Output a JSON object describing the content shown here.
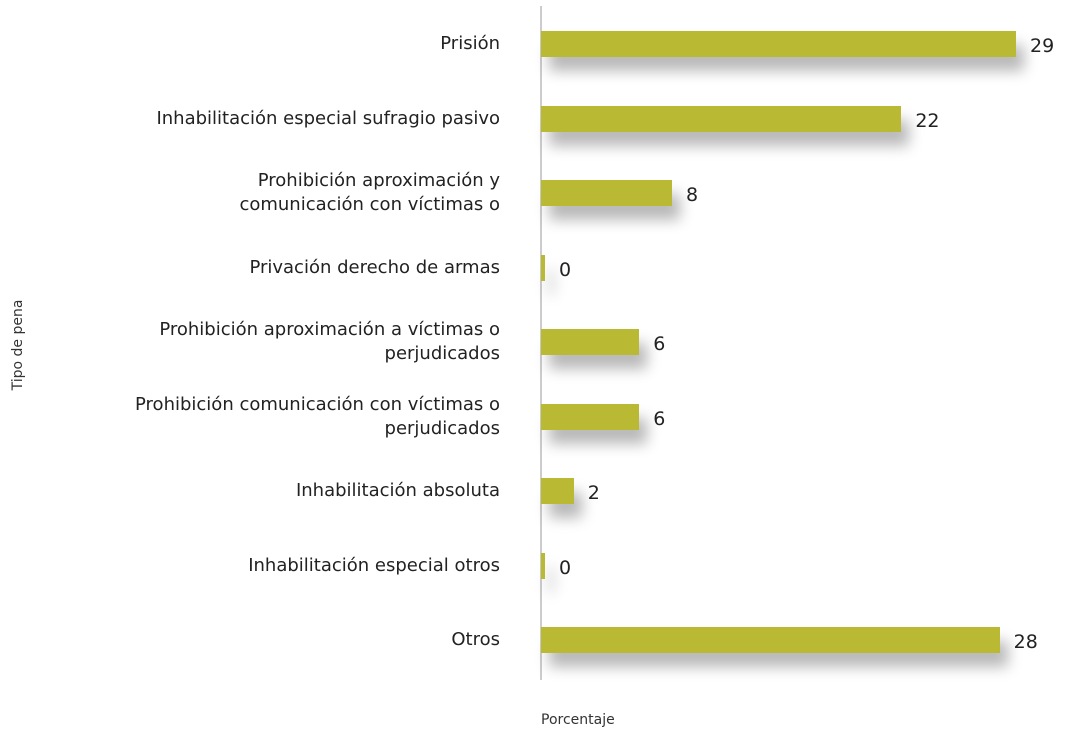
{
  "chart_data": {
    "type": "barh",
    "categories": [
      "Prisión",
      "Inhabilitación especial sufragio pasivo",
      "Prohibición aproximación y\ncomunicación con víctimas o",
      "Privación derecho de armas",
      "Prohibición aproximación a víctimas o\nperjudicados",
      "Prohibición comunicación con víctimas o\nperjudicados",
      "Inhabilitación absoluta",
      "Inhabilitación especial otros",
      "Otros"
    ],
    "values": [
      29,
      22,
      8,
      0,
      6,
      6,
      2,
      0,
      28
    ],
    "color": "#bab933",
    "xlim": [
      0,
      29
    ],
    "xlabel": "Porcentaje",
    "ylabel": "Tipo de pena"
  }
}
